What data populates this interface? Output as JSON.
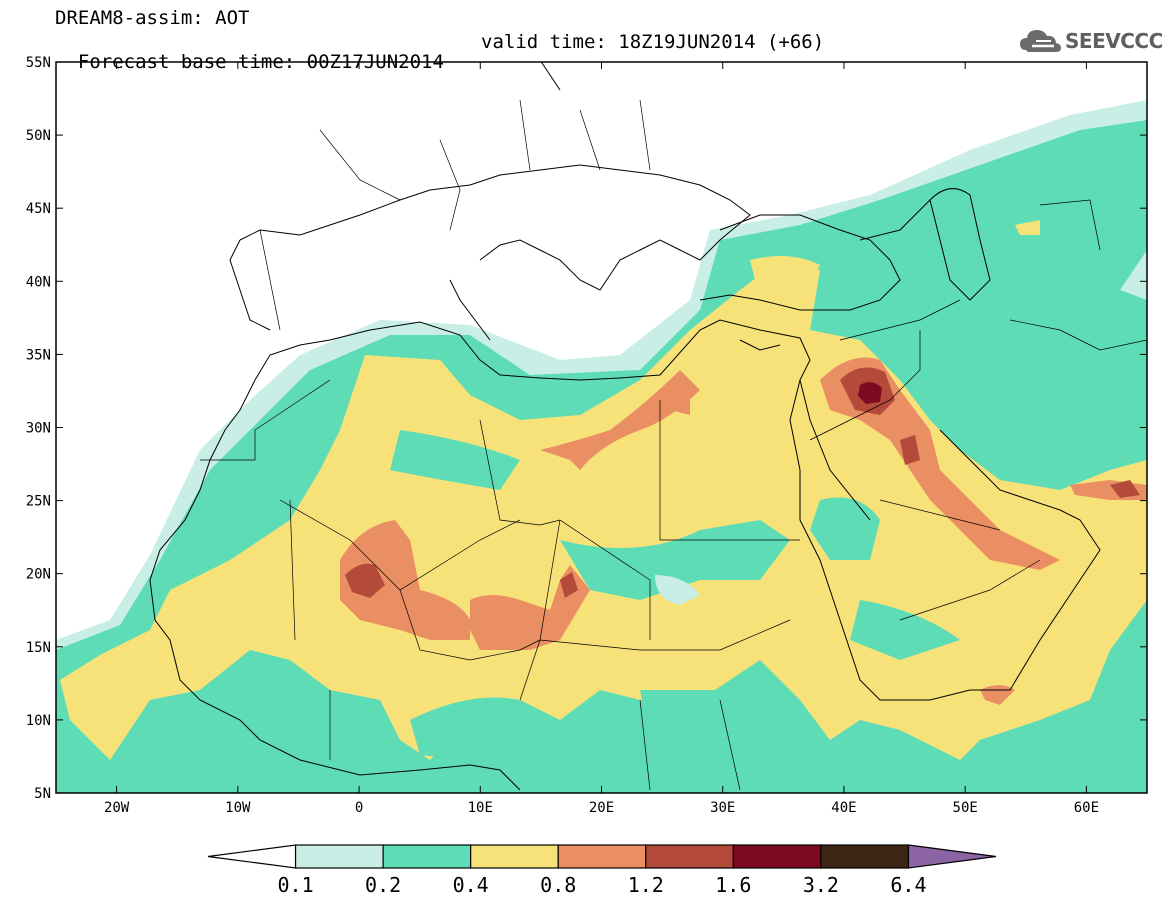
{
  "header": {
    "line1": "DREAM8-assim: AOT",
    "line2": "Forecast base time: 00Z17JUN2014",
    "valid": "valid time: 18Z19JUN2014 (+66)",
    "logo_text": "SEEVCCC"
  },
  "map": {
    "lon_range": [
      -25,
      65
    ],
    "lat_range": [
      5,
      55
    ],
    "lat_ticks": [
      "55N",
      "50N",
      "45N",
      "40N",
      "35N",
      "30N",
      "25N",
      "20N",
      "15N",
      "10N",
      "5N"
    ],
    "lat_values": [
      55,
      50,
      45,
      40,
      35,
      30,
      25,
      20,
      15,
      10,
      5
    ],
    "lon_ticks": [
      "20W",
      "10W",
      "0",
      "10E",
      "20E",
      "30E",
      "40E",
      "50E",
      "60E"
    ],
    "lon_values": [
      -20,
      -10,
      0,
      10,
      20,
      30,
      40,
      50,
      60
    ]
  },
  "legend": {
    "levels": [
      "0.1",
      "0.2",
      "0.4",
      "0.8",
      "1.2",
      "1.6",
      "3.2",
      "6.4"
    ],
    "colors": [
      "#ffffff",
      "#c8eee6",
      "#5ddcb6",
      "#f7e27a",
      "#ea8f63",
      "#b34a3a",
      "#7d0a22",
      "#3e2616",
      "#8c63a3"
    ]
  },
  "colors": {
    "aot_0_1": "#c8eee6",
    "aot_0_2": "#5ddcb6",
    "aot_0_4": "#f7e27a",
    "aot_0_8": "#ea8f63",
    "aot_1_2": "#b34a3a",
    "aot_1_6": "#7d0a22"
  }
}
